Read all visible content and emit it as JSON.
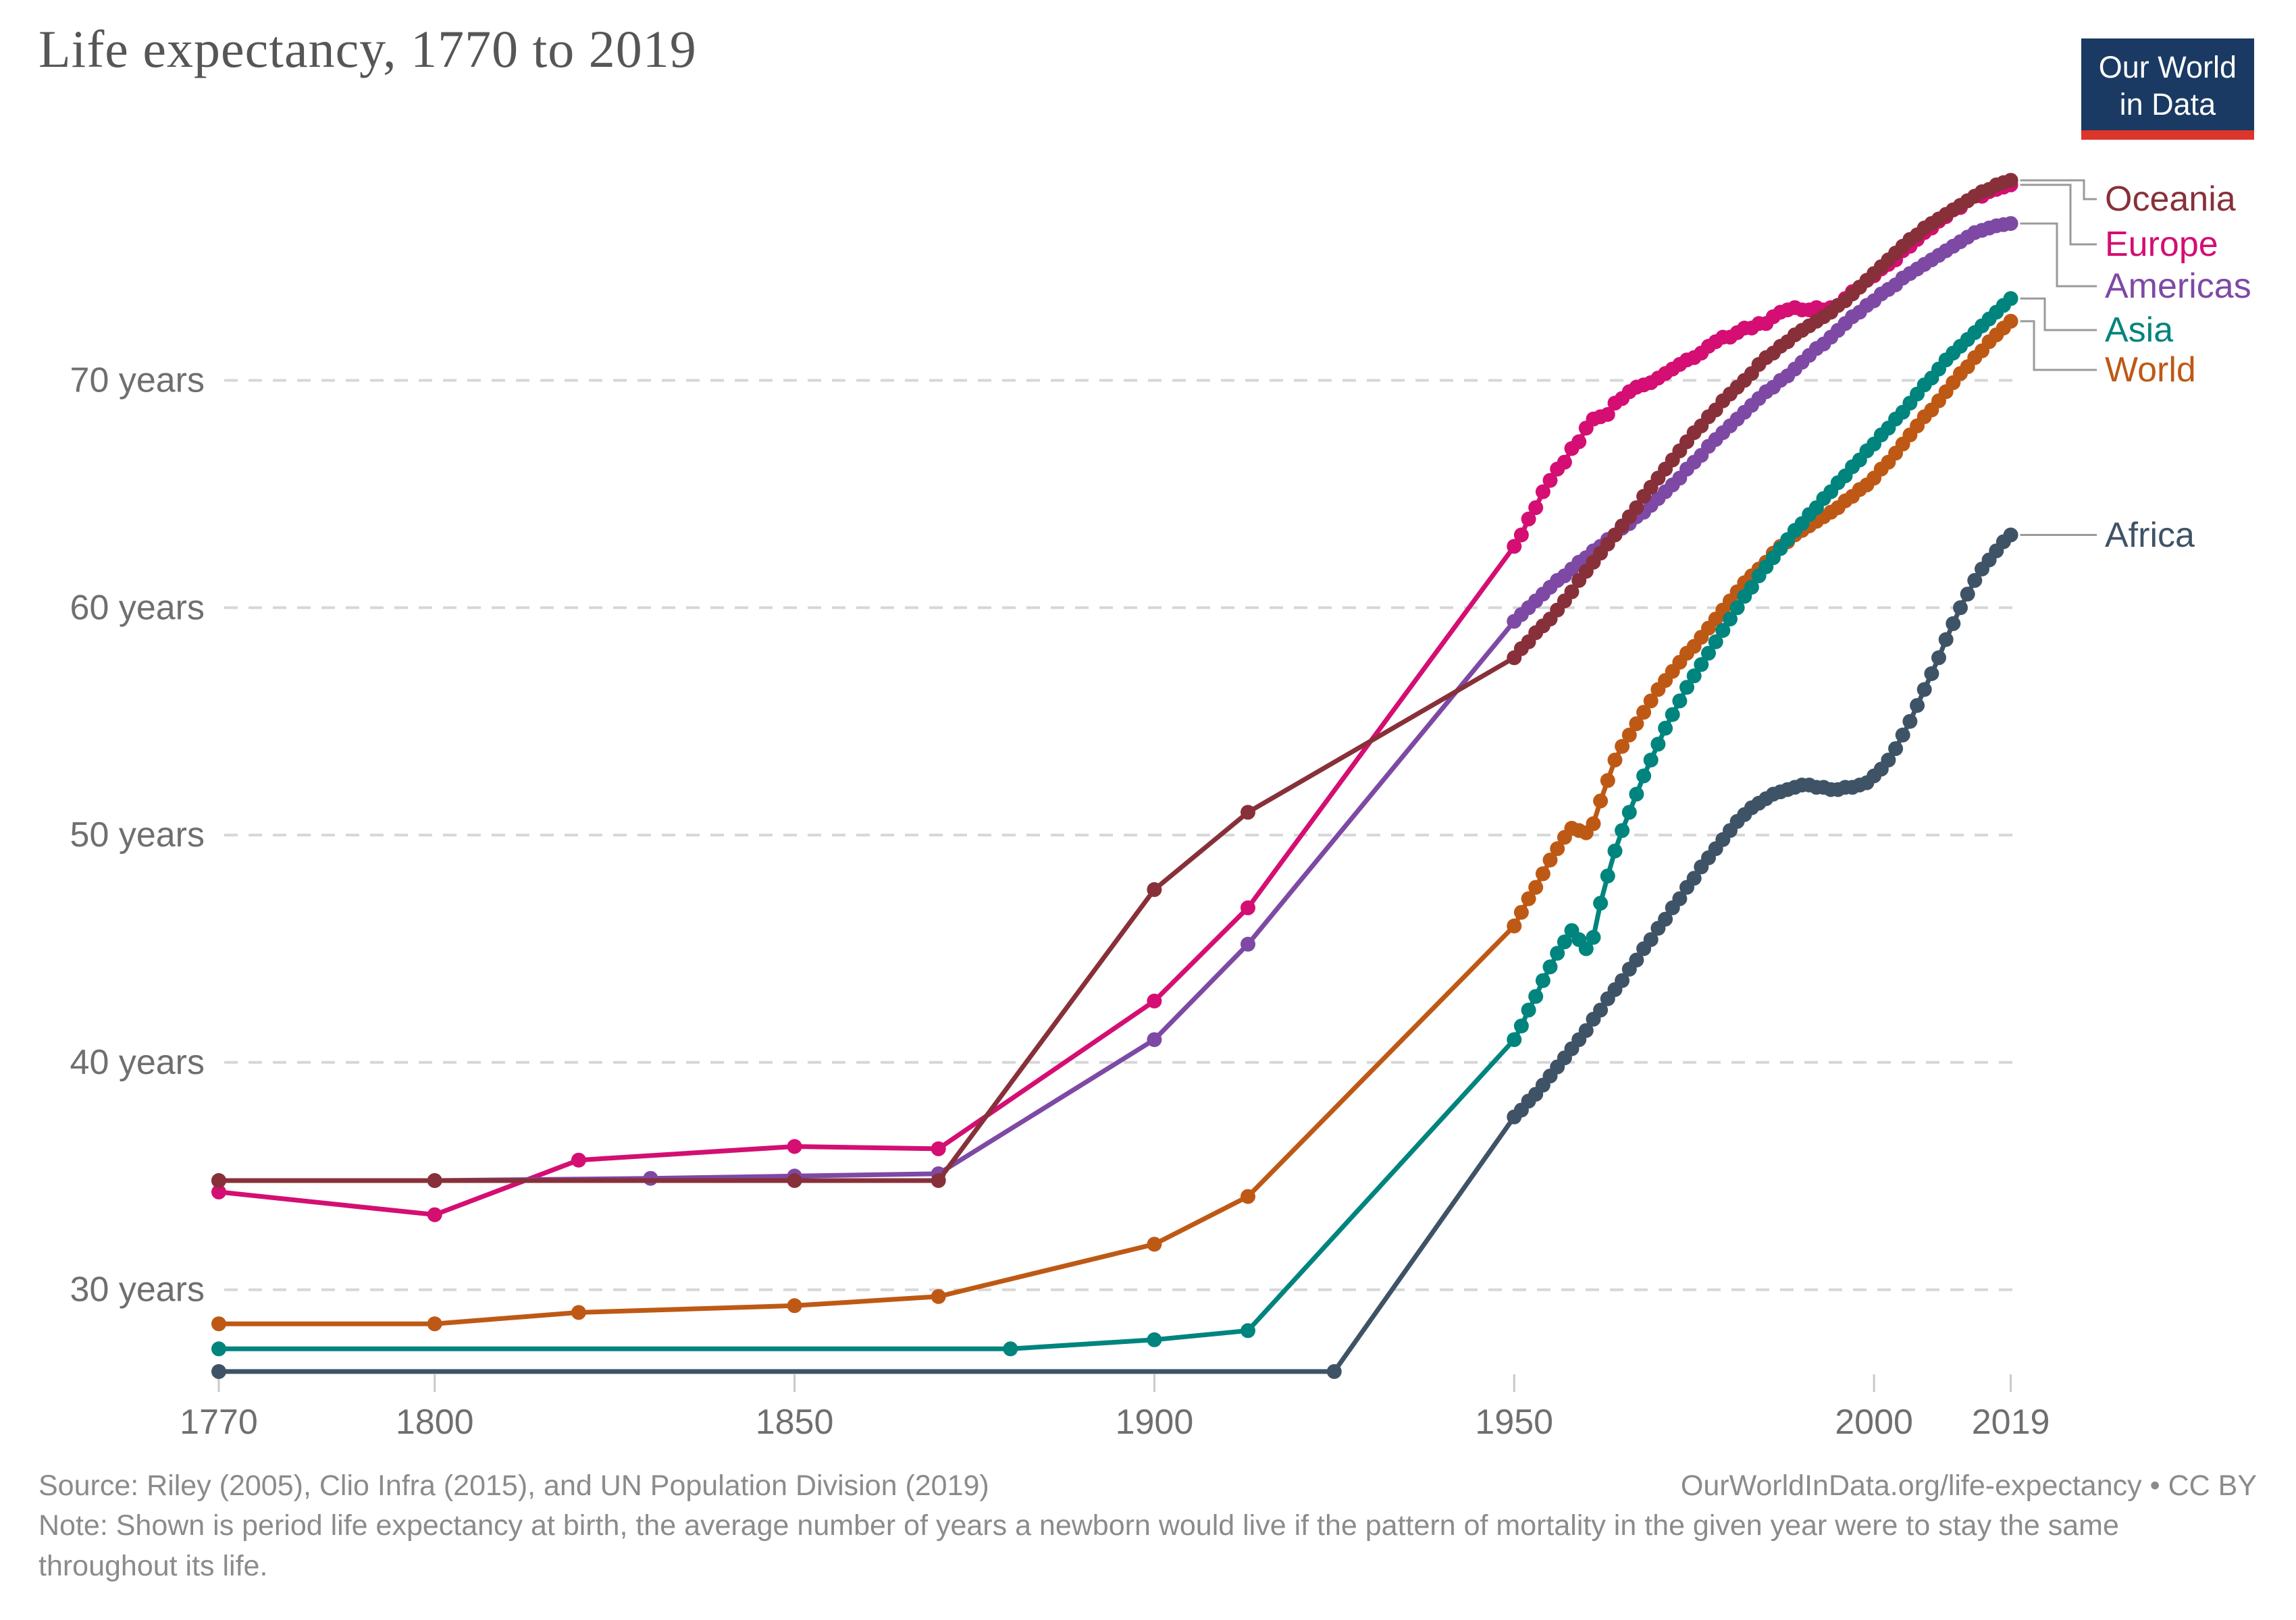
{
  "header": {
    "title": "Life expectancy, 1770 to 2019"
  },
  "logo": {
    "line1": "Our World",
    "line2": "in Data"
  },
  "footer": {
    "source": "Source: Riley (2005), Clio Infra (2015), and UN Population Division (2019)",
    "note": "Note: Shown is period life expectancy at birth, the average number of years a newborn would live if the pattern of mortality in the given year were to stay the same throughout its life.",
    "attribution": "OurWorldInData.org/life-expectancy • CC BY"
  },
  "colors": {
    "grid": "#d7d7d7",
    "axis_tick": "#c9c9c9",
    "tick_text": "#6f6f6f",
    "leader_line": "#9a9a9a",
    "logo_bg": "#1a3a63",
    "logo_bar": "#dc352b"
  },
  "chart_data": {
    "type": "line",
    "title": "Life expectancy, 1770 to 2019",
    "xlabel": "",
    "ylabel": "",
    "x_range": [
      1770,
      2019
    ],
    "y_range": [
      26,
      79
    ],
    "grid": "horizontal dashed",
    "legend_position": "right",
    "y_ticks": [
      {
        "value": 30,
        "label": "30 years"
      },
      {
        "value": 40,
        "label": "40 years"
      },
      {
        "value": 50,
        "label": "50 years"
      },
      {
        "value": 60,
        "label": "60 years"
      },
      {
        "value": 70,
        "label": "70 years"
      }
    ],
    "x_ticks": [
      {
        "value": 1770,
        "label": "1770"
      },
      {
        "value": 1800,
        "label": "1800"
      },
      {
        "value": 1850,
        "label": "1850"
      },
      {
        "value": 1900,
        "label": "1900"
      },
      {
        "value": 1950,
        "label": "1950"
      },
      {
        "value": 2000,
        "label": "2000"
      },
      {
        "value": 2019,
        "label": "2019"
      }
    ],
    "series": [
      {
        "name": "Africa",
        "color": "#3f5366",
        "pre_1950": [
          [
            1770,
            26.4
          ],
          [
            1925,
            26.4
          ]
        ],
        "annual_start": 1950,
        "annual": [
          37.6,
          37.9,
          38.3,
          38.6,
          39.0,
          39.4,
          39.8,
          40.2,
          40.6,
          41.0,
          41.4,
          41.9,
          42.3,
          42.8,
          43.2,
          43.6,
          44.1,
          44.5,
          45.0,
          45.4,
          45.9,
          46.3,
          46.8,
          47.2,
          47.7,
          48.1,
          48.6,
          49.0,
          49.4,
          49.8,
          50.2,
          50.6,
          50.9,
          51.2,
          51.4,
          51.6,
          51.8,
          51.9,
          52.0,
          52.1,
          52.2,
          52.2,
          52.1,
          52.1,
          52.0,
          52.0,
          52.1,
          52.1,
          52.2,
          52.3,
          52.6,
          52.9,
          53.3,
          53.8,
          54.4,
          55.0,
          55.7,
          56.4,
          57.1,
          57.8,
          58.6,
          59.3,
          60.0,
          60.6,
          61.2,
          61.7,
          62.1,
          62.5,
          62.9,
          63.2
        ]
      },
      {
        "name": "World",
        "color": "#be5915",
        "pre_1950": [
          [
            1770,
            28.5
          ],
          [
            1800,
            28.5
          ],
          [
            1820,
            29.0
          ],
          [
            1850,
            29.3
          ],
          [
            1870,
            29.7
          ],
          [
            1900,
            32.0
          ],
          [
            1913,
            34.1
          ]
        ],
        "annual_start": 1950,
        "annual": [
          46.0,
          46.6,
          47.2,
          47.7,
          48.3,
          48.9,
          49.4,
          49.9,
          50.3,
          50.2,
          50.1,
          50.5,
          51.5,
          52.4,
          53.3,
          53.9,
          54.4,
          54.9,
          55.4,
          55.9,
          56.4,
          56.8,
          57.2,
          57.6,
          58.0,
          58.3,
          58.7,
          59.1,
          59.5,
          59.9,
          60.3,
          60.7,
          61.1,
          61.4,
          61.7,
          62.0,
          62.4,
          62.7,
          62.9,
          63.2,
          63.4,
          63.6,
          63.8,
          64.0,
          64.2,
          64.4,
          64.7,
          64.9,
          65.2,
          65.4,
          65.7,
          66.1,
          66.4,
          66.8,
          67.2,
          67.6,
          68.0,
          68.4,
          68.7,
          69.1,
          69.5,
          69.9,
          70.3,
          70.6,
          71.0,
          71.3,
          71.7,
          72.0,
          72.3,
          72.6
        ]
      },
      {
        "name": "Asia",
        "color": "#00847e",
        "pre_1950": [
          [
            1770,
            27.4
          ],
          [
            1880,
            27.4
          ],
          [
            1900,
            27.8
          ],
          [
            1913,
            28.2
          ]
        ],
        "annual_start": 1950,
        "annual": [
          41.0,
          41.6,
          42.3,
          42.9,
          43.6,
          44.2,
          44.8,
          45.3,
          45.8,
          45.4,
          45.0,
          45.5,
          47.0,
          48.2,
          49.3,
          50.2,
          51.0,
          51.8,
          52.6,
          53.3,
          54.0,
          54.7,
          55.3,
          55.9,
          56.5,
          57.0,
          57.5,
          58.0,
          58.5,
          59.0,
          59.5,
          60.0,
          60.5,
          60.9,
          61.4,
          61.8,
          62.2,
          62.6,
          63.0,
          63.4,
          63.7,
          64.1,
          64.4,
          64.8,
          65.1,
          65.5,
          65.8,
          66.2,
          66.5,
          66.9,
          67.2,
          67.6,
          67.9,
          68.3,
          68.6,
          69.0,
          69.4,
          69.8,
          70.1,
          70.5,
          70.9,
          71.2,
          71.5,
          71.8,
          72.1,
          72.4,
          72.7,
          73.0,
          73.3,
          73.6
        ]
      },
      {
        "name": "Europe",
        "color": "#d40e72",
        "pre_1950": [
          [
            1770,
            34.3
          ],
          [
            1800,
            33.3
          ],
          [
            1820,
            35.7
          ],
          [
            1850,
            36.3
          ],
          [
            1870,
            36.2
          ],
          [
            1900,
            42.7
          ],
          [
            1913,
            46.8
          ]
        ],
        "annual_start": 1950,
        "annual": [
          62.7,
          63.2,
          63.9,
          64.4,
          65.1,
          65.6,
          66.1,
          66.4,
          67.0,
          67.3,
          67.9,
          68.3,
          68.4,
          68.5,
          69.0,
          69.2,
          69.5,
          69.7,
          69.8,
          69.9,
          70.1,
          70.3,
          70.5,
          70.7,
          70.9,
          71.0,
          71.2,
          71.5,
          71.7,
          71.9,
          71.9,
          72.1,
          72.3,
          72.3,
          72.5,
          72.5,
          72.8,
          73.0,
          73.1,
          73.2,
          73.1,
          73.1,
          73.2,
          73.1,
          73.2,
          73.3,
          73.6,
          73.9,
          74.1,
          74.4,
          74.6,
          74.9,
          75.1,
          75.3,
          75.7,
          75.9,
          76.2,
          76.5,
          76.7,
          77.0,
          77.2,
          77.5,
          77.6,
          77.9,
          78.1,
          78.1,
          78.3,
          78.4,
          78.5,
          78.6
        ]
      },
      {
        "name": "Americas",
        "color": "#7e49a5",
        "pre_1950": [
          [
            1770,
            34.8
          ],
          [
            1800,
            34.8
          ],
          [
            1830,
            34.9
          ],
          [
            1850,
            35.0
          ],
          [
            1870,
            35.1
          ],
          [
            1900,
            41.0
          ],
          [
            1913,
            45.2
          ]
        ],
        "annual_start": 1950,
        "annual": [
          59.4,
          59.7,
          60.0,
          60.3,
          60.6,
          60.9,
          61.2,
          61.4,
          61.7,
          62.0,
          62.2,
          62.5,
          62.7,
          63.0,
          63.2,
          63.5,
          63.7,
          64.0,
          64.2,
          64.5,
          64.8,
          65.1,
          65.4,
          65.7,
          66.1,
          66.4,
          66.7,
          67.1,
          67.4,
          67.7,
          68.0,
          68.3,
          68.6,
          68.9,
          69.2,
          69.5,
          69.7,
          70.0,
          70.2,
          70.5,
          70.8,
          71.1,
          71.4,
          71.6,
          71.9,
          72.2,
          72.5,
          72.8,
          73.0,
          73.3,
          73.5,
          73.8,
          74.0,
          74.2,
          74.5,
          74.7,
          74.9,
          75.1,
          75.3,
          75.5,
          75.7,
          75.9,
          76.1,
          76.3,
          76.5,
          76.6,
          76.7,
          76.8,
          76.85,
          76.9
        ]
      },
      {
        "name": "Oceania",
        "color": "#883039",
        "pre_1950": [
          [
            1770,
            34.8
          ],
          [
            1800,
            34.8
          ],
          [
            1850,
            34.8
          ],
          [
            1870,
            34.8
          ],
          [
            1900,
            47.6
          ],
          [
            1913,
            51.0
          ]
        ],
        "annual_start": 1950,
        "annual": [
          57.8,
          58.2,
          58.5,
          58.9,
          59.2,
          59.5,
          59.9,
          60.3,
          60.7,
          61.2,
          61.6,
          62.0,
          62.4,
          62.8,
          63.2,
          63.6,
          64.0,
          64.4,
          64.9,
          65.3,
          65.7,
          66.1,
          66.5,
          66.9,
          67.3,
          67.7,
          68.0,
          68.4,
          68.7,
          69.1,
          69.4,
          69.7,
          70.0,
          70.3,
          70.7,
          71.0,
          71.2,
          71.5,
          71.7,
          72.0,
          72.2,
          72.4,
          72.6,
          72.8,
          73.0,
          73.3,
          73.5,
          73.8,
          74.1,
          74.4,
          74.7,
          75.0,
          75.3,
          75.6,
          75.9,
          76.2,
          76.4,
          76.7,
          76.9,
          77.1,
          77.3,
          77.5,
          77.7,
          77.9,
          78.1,
          78.3,
          78.4,
          78.6,
          78.7,
          78.8
        ]
      }
    ]
  }
}
